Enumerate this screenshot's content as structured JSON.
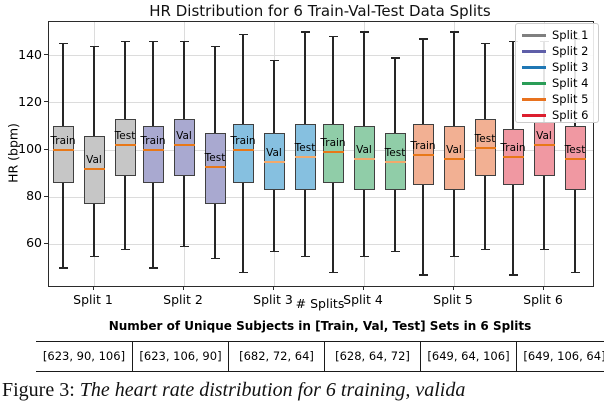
{
  "figure": {
    "title": "HR Distribution for 6 Train-Val-Test Data Splits",
    "ylabel": "HR (bpm)",
    "xlabel": "# Splits",
    "legend": [
      {
        "label": "Split 1",
        "color": "#7f7f7f"
      },
      {
        "label": "Split 2",
        "color": "#5e5ea8"
      },
      {
        "label": "Split 3",
        "color": "#1f77b4"
      },
      {
        "label": "Split 4",
        "color": "#2a9d57"
      },
      {
        "label": "Split 5",
        "color": "#e8721e"
      },
      {
        "label": "Split 6",
        "color": "#dc1e2e"
      }
    ]
  },
  "chart_data": {
    "type": "boxplot",
    "title": "HR Distribution for 6 Train-Val-Test Data Splits",
    "xlabel": "# Splits",
    "ylabel": "HR (bpm)",
    "ylim": [
      42,
      154
    ],
    "yticks": [
      60,
      80,
      100,
      120,
      140
    ],
    "grid": true,
    "legend_position": "upper right",
    "median_color": "#e87818",
    "median_faint_color": "#f2a96c",
    "box_edge_color": "#404040",
    "whisker_color": "#262626",
    "groups": [
      {
        "label": "Split 1",
        "fill": "#c6c6c6",
        "legend_color": "#7f7f7f",
        "boxes": [
          {
            "set": "Train",
            "whislo": 50,
            "q1": 86,
            "med": 100,
            "q3": 110,
            "whishi": 145,
            "faint_median": false
          },
          {
            "set": "Val",
            "whislo": 55,
            "q1": 77,
            "med": 92,
            "q3": 106,
            "whishi": 144,
            "faint_median": false
          },
          {
            "set": "Test",
            "whislo": 58,
            "q1": 89,
            "med": 102,
            "q3": 113,
            "whishi": 146,
            "faint_median": false
          }
        ]
      },
      {
        "label": "Split 2",
        "fill": "#a9a9d0",
        "legend_color": "#5e5ea8",
        "boxes": [
          {
            "set": "Train",
            "whislo": 50,
            "q1": 86,
            "med": 100,
            "q3": 110,
            "whishi": 146,
            "faint_median": false
          },
          {
            "set": "Val",
            "whislo": 59,
            "q1": 89,
            "med": 102,
            "q3": 113,
            "whishi": 146,
            "faint_median": false
          },
          {
            "set": "Test",
            "whislo": 54,
            "q1": 77,
            "med": 93,
            "q3": 107,
            "whishi": 144,
            "faint_median": false
          }
        ]
      },
      {
        "label": "Split 3",
        "fill": "#86c0e0",
        "legend_color": "#1f77b4",
        "boxes": [
          {
            "set": "Train",
            "whislo": 48,
            "q1": 86,
            "med": 100,
            "q3": 111,
            "whishi": 149,
            "faint_median": false
          },
          {
            "set": "Val",
            "whislo": 57,
            "q1": 83,
            "med": 95,
            "q3": 107,
            "whishi": 138,
            "faint_median": true
          },
          {
            "set": "Test",
            "whislo": 55,
            "q1": 83,
            "med": 97,
            "q3": 111,
            "whishi": 150,
            "faint_median": true
          }
        ]
      },
      {
        "label": "Split 4",
        "fill": "#90cda8",
        "legend_color": "#2a9d57",
        "boxes": [
          {
            "set": "Train",
            "whislo": 48,
            "q1": 86,
            "med": 99,
            "q3": 111,
            "whishi": 148,
            "faint_median": false
          },
          {
            "set": "Val",
            "whislo": 55,
            "q1": 83,
            "med": 96,
            "q3": 110,
            "whishi": 150,
            "faint_median": true
          },
          {
            "set": "Test",
            "whislo": 57,
            "q1": 83,
            "med": 95,
            "q3": 107,
            "whishi": 139,
            "faint_median": true
          }
        ]
      },
      {
        "label": "Split 5",
        "fill": "#f2b093",
        "legend_color": "#e8721e",
        "boxes": [
          {
            "set": "Train",
            "whislo": 47,
            "q1": 85,
            "med": 98,
            "q3": 111,
            "whishi": 147,
            "faint_median": false
          },
          {
            "set": "Val",
            "whislo": 55,
            "q1": 83,
            "med": 96,
            "q3": 110,
            "whishi": 150,
            "faint_median": false
          },
          {
            "set": "Test",
            "whislo": 58,
            "q1": 89,
            "med": 101,
            "q3": 113,
            "whishi": 145,
            "faint_median": false
          }
        ]
      },
      {
        "label": "Split 6",
        "fill": "#f098a2",
        "legend_color": "#dc1e2e",
        "boxes": [
          {
            "set": "Train",
            "whislo": 47,
            "q1": 85,
            "med": 97,
            "q3": 109,
            "whishi": 146,
            "faint_median": false
          },
          {
            "set": "Val",
            "whislo": 58,
            "q1": 89,
            "med": 102,
            "q3": 112,
            "whishi": 146,
            "faint_median": false
          },
          {
            "set": "Test",
            "whislo": 48,
            "q1": 83,
            "med": 96,
            "q3": 110,
            "whishi": 147,
            "faint_median": false
          }
        ]
      }
    ]
  },
  "table": {
    "title": "Number of Unique Subjects in [Train, Val, Test] Sets in 6 Splits",
    "cells": [
      "[623, 90, 106]",
      "[623, 106, 90]",
      "[682, 72, 64]",
      "[628, 64, 72]",
      "[649, 64, 106]",
      "[649, 106, 64]"
    ]
  },
  "caption": {
    "prefix": "Figure 3:",
    "body": " The heart rate distribution for 6 training, valida"
  }
}
